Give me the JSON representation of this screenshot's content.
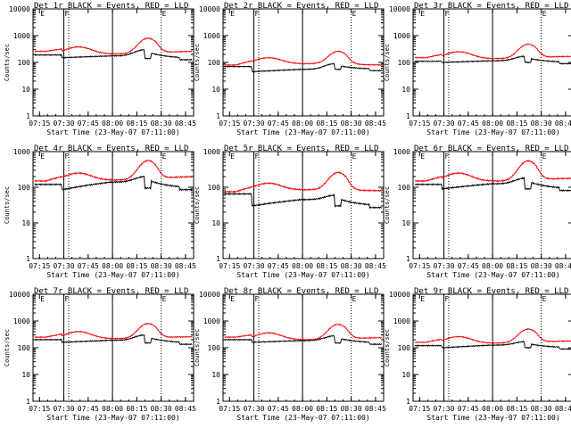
{
  "figure": {
    "xlabel": "Start Time (23-May-07 07:11:00)",
    "ylabel": "Counts/sec",
    "x_tick_labels": [
      "07:15",
      "07:30",
      "07:45",
      "08:00",
      "08:15",
      "08:30",
      "08:45"
    ],
    "y_tick_labels": [
      "1",
      "10",
      "100",
      "1000",
      "10000"
    ],
    "marker_labels": [
      "E",
      "F",
      "E"
    ]
  },
  "chart_data": [
    {
      "type": "line",
      "title": "Det 1r BLACK = Events, RED = LLD",
      "ylim": [
        1,
        10000
      ],
      "ymax_label": "10000",
      "series": [
        {
          "name": "Events",
          "color": "#000000",
          "pre": 190,
          "sat": 150,
          "base": 175,
          "peak": 300,
          "dip": 140
        },
        {
          "name": "LLD",
          "color": "#ff0000",
          "pre": 260,
          "sat": 380,
          "base": 210,
          "peak": 800,
          "dip": 260
        }
      ]
    },
    {
      "type": "line",
      "title": "Det 2r BLACK = Events, RED = LLD",
      "ylim": [
        1,
        10000
      ],
      "ymax_label": "10000",
      "series": [
        {
          "name": "Events",
          "color": "#000000",
          "pre": 70,
          "sat": 45,
          "base": 55,
          "peak": 90,
          "dip": 55
        },
        {
          "name": "LLD",
          "color": "#ff0000",
          "pre": 80,
          "sat": 150,
          "base": 90,
          "peak": 260,
          "dip": 80
        }
      ]
    },
    {
      "type": "line",
      "title": "Det 3r BLACK = Events, RED = LLD",
      "ylim": [
        1,
        10000
      ],
      "ymax_label": "10000",
      "series": [
        {
          "name": "Events",
          "color": "#000000",
          "pre": 110,
          "sat": 100,
          "base": 115,
          "peak": 170,
          "dip": 100
        },
        {
          "name": "LLD",
          "color": "#ff0000",
          "pre": 150,
          "sat": 250,
          "base": 140,
          "peak": 480,
          "dip": 170
        }
      ]
    },
    {
      "type": "line",
      "title": "Det 4r BLACK = Events, RED = LLD",
      "ylim": [
        1,
        1000
      ],
      "ymax_label": "1000",
      "series": [
        {
          "name": "Events",
          "color": "#000000",
          "pre": 120,
          "sat": 85,
          "base": 140,
          "peak": 200,
          "dip": 95
        },
        {
          "name": "LLD",
          "color": "#ff0000",
          "pre": 150,
          "sat": 250,
          "base": 160,
          "peak": 560,
          "dip": 200
        }
      ]
    },
    {
      "type": "line",
      "title": "Det 5r BLACK = Events, RED = LLD",
      "ylim": [
        1,
        1000
      ],
      "ymax_label": "1000",
      "series": [
        {
          "name": "Events",
          "color": "#000000",
          "pre": 65,
          "sat": 30,
          "base": 45,
          "peak": 60,
          "dip": 30
        },
        {
          "name": "LLD",
          "color": "#ff0000",
          "pre": 75,
          "sat": 130,
          "base": 85,
          "peak": 260,
          "dip": 80
        }
      ]
    },
    {
      "type": "line",
      "title": "Det 6r BLACK = Events, RED = LLD",
      "ylim": [
        1,
        1000
      ],
      "ymax_label": "1000",
      "series": [
        {
          "name": "Events",
          "color": "#000000",
          "pre": 120,
          "sat": 90,
          "base": 125,
          "peak": 180,
          "dip": 90
        },
        {
          "name": "LLD",
          "color": "#ff0000",
          "pre": 150,
          "sat": 250,
          "base": 150,
          "peak": 550,
          "dip": 180
        }
      ]
    },
    {
      "type": "line",
      "title": "Det 7r BLACK = Events, RED = LLD",
      "ylim": [
        1,
        10000
      ],
      "ymax_label": "10000",
      "series": [
        {
          "name": "Events",
          "color": "#000000",
          "pre": 200,
          "sat": 160,
          "base": 190,
          "peak": 300,
          "dip": 150
        },
        {
          "name": "LLD",
          "color": "#ff0000",
          "pre": 250,
          "sat": 400,
          "base": 220,
          "peak": 800,
          "dip": 260
        }
      ]
    },
    {
      "type": "line",
      "title": "Det 8r BLACK = Events, RED = LLD",
      "ylim": [
        1,
        10000
      ],
      "ymax_label": "10000",
      "series": [
        {
          "name": "Events",
          "color": "#000000",
          "pre": 200,
          "sat": 160,
          "base": 185,
          "peak": 280,
          "dip": 150
        },
        {
          "name": "LLD",
          "color": "#ff0000",
          "pre": 250,
          "sat": 360,
          "base": 200,
          "peak": 750,
          "dip": 240
        }
      ]
    },
    {
      "type": "line",
      "title": "Det 9r BLACK = Events, RED = LLD",
      "ylim": [
        1,
        10000
      ],
      "ymax_label": "10000",
      "series": [
        {
          "name": "Events",
          "color": "#000000",
          "pre": 120,
          "sat": 100,
          "base": 125,
          "peak": 170,
          "dip": 100
        },
        {
          "name": "LLD",
          "color": "#ff0000",
          "pre": 160,
          "sat": 260,
          "base": 150,
          "peak": 500,
          "dip": 180
        }
      ]
    }
  ]
}
